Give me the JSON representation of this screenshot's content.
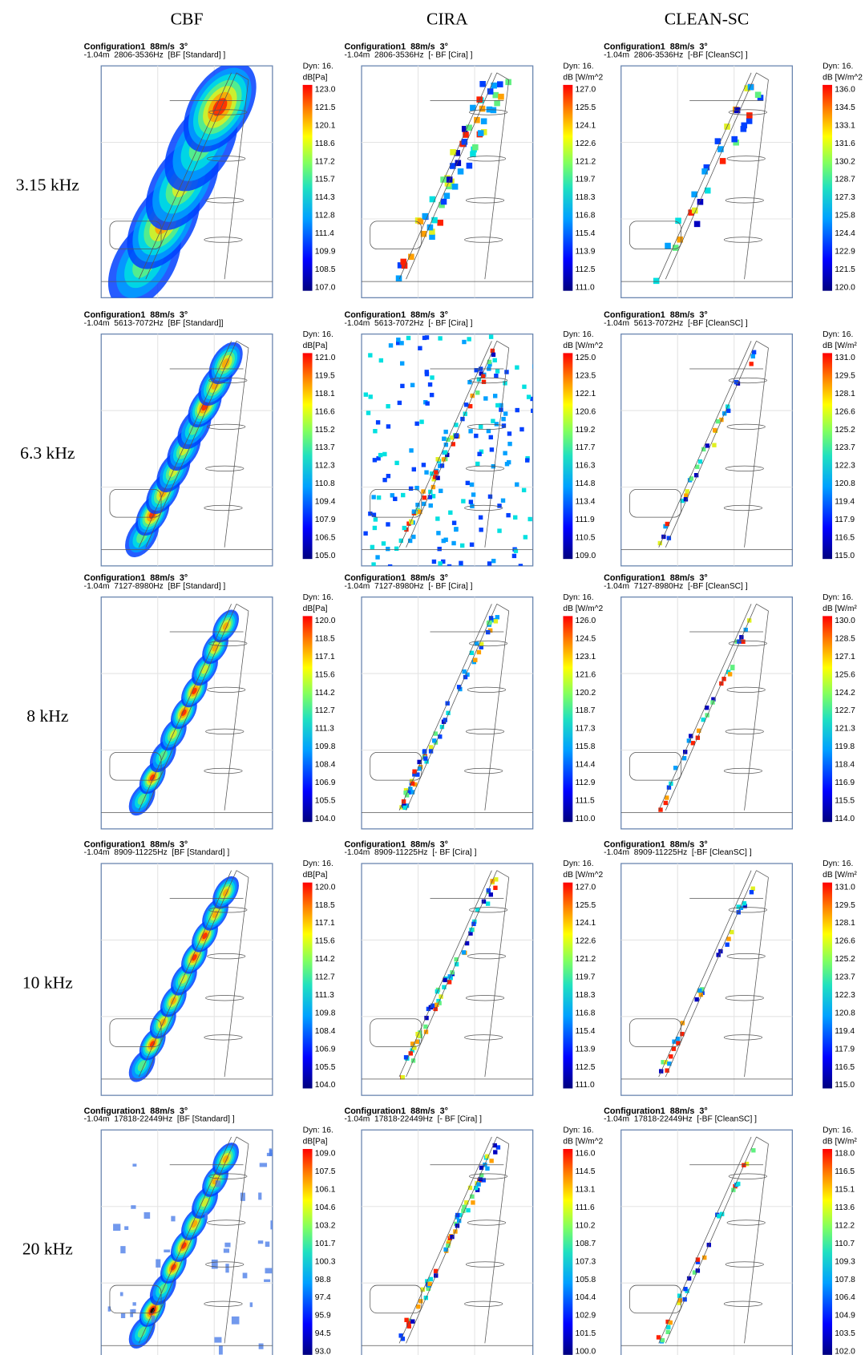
{
  "columns": [
    "CBF",
    "CIRA",
    "CLEAN-SC"
  ],
  "rows": [
    {
      "label": "3.15 kHz",
      "panels": [
        {
          "title": "Configuration1  88m/s  3°",
          "subtitle": "-1.04m  2806-3536Hz  [BF [Standard] ]",
          "dyn": "Dyn: 16.",
          "unit": "dB[Pa]",
          "scale": [
            "123.0",
            "121.5",
            "120.1",
            "118.6",
            "117.2",
            "115.7",
            "114.3",
            "112.8",
            "111.4",
            "109.9",
            "108.5",
            "107.0"
          ]
        },
        {
          "title": "Configuration1  88m/s  3°",
          "subtitle": "-1.04m  2806-3536Hz  [- BF [Cira] ]",
          "dyn": "Dyn: 16.",
          "unit": "dB [W/m^2",
          "scale": [
            "127.0",
            "125.5",
            "124.1",
            "122.6",
            "121.2",
            "119.7",
            "118.3",
            "116.8",
            "115.4",
            "113.9",
            "112.5",
            "111.0"
          ]
        },
        {
          "title": "Configuration1  88m/s  3°",
          "subtitle": "-1.04m  2806-3536Hz  [-BF [CleanSC] ]",
          "dyn": "Dyn: 16.",
          "unit": "dB [W/m^2",
          "scale": [
            "136.0",
            "134.5",
            "133.1",
            "131.6",
            "130.2",
            "128.7",
            "127.3",
            "125.8",
            "124.4",
            "122.9",
            "121.5",
            "120.0"
          ]
        }
      ]
    },
    {
      "label": "6.3 kHz",
      "panels": [
        {
          "title": "Configuration1  88m/s  3°",
          "subtitle": "-1.04m  5613-7072Hz  [BF [Standard]]",
          "dyn": "Dyn: 16.",
          "unit": "dB[Pa]",
          "scale": [
            "121.0",
            "119.5",
            "118.1",
            "116.6",
            "115.2",
            "113.7",
            "112.3",
            "110.8",
            "109.4",
            "107.9",
            "106.5",
            "105.0"
          ]
        },
        {
          "title": "Configuration1  88m/s  3°",
          "subtitle": "-1.04m  5613-7072Hz  [- BF [Cira] ]",
          "dyn": "Dyn: 16.",
          "unit": "dB [W/m^2",
          "scale": [
            "125.0",
            "123.5",
            "122.1",
            "120.6",
            "119.2",
            "117.7",
            "116.3",
            "114.8",
            "113.4",
            "111.9",
            "110.5",
            "109.0"
          ]
        },
        {
          "title": "Configuration1  88m/s  3°",
          "subtitle": "-1.04m  5613-7072Hz  [-BF [CleanSC] ]",
          "dyn": "Dyn: 16.",
          "unit": "dB [W/m²",
          "scale": [
            "131.0",
            "129.5",
            "128.1",
            "126.6",
            "125.2",
            "123.7",
            "122.3",
            "120.8",
            "119.4",
            "117.9",
            "116.5",
            "115.0"
          ]
        }
      ]
    },
    {
      "label": "8 kHz",
      "panels": [
        {
          "title": "Configuration1  88m/s  3°",
          "subtitle": "-1.04m  7127-8980Hz  [BF [Standard] ]",
          "dyn": "Dyn: 16.",
          "unit": "dB[Pa]",
          "scale": [
            "120.0",
            "118.5",
            "117.1",
            "115.6",
            "114.2",
            "112.7",
            "111.3",
            "109.8",
            "108.4",
            "106.9",
            "105.5",
            "104.0"
          ]
        },
        {
          "title": "Configuration1  88m/s  3°",
          "subtitle": "-1.04m  7127-8980Hz  [- BF [Cira] ]",
          "dyn": "Dyn: 16.",
          "unit": "dB [W/m^2",
          "scale": [
            "126.0",
            "124.5",
            "123.1",
            "121.6",
            "120.2",
            "118.7",
            "117.3",
            "115.8",
            "114.4",
            "112.9",
            "111.5",
            "110.0"
          ]
        },
        {
          "title": "Configuration1  88m/s  3°",
          "subtitle": "-1.04m  7127-8980Hz  [-BF [CleanSC] ]",
          "dyn": "Dyn: 16.",
          "unit": "dB [W/m²",
          "scale": [
            "130.0",
            "128.5",
            "127.1",
            "125.6",
            "124.2",
            "122.7",
            "121.3",
            "119.8",
            "118.4",
            "116.9",
            "115.5",
            "114.0"
          ]
        }
      ]
    },
    {
      "label": "10 kHz",
      "panels": [
        {
          "title": "Configuration1  88m/s  3°",
          "subtitle": "-1.04m  8909-11225Hz  [BF [Standard] ]",
          "dyn": "Dyn: 16.",
          "unit": "dB[Pa]",
          "scale": [
            "120.0",
            "118.5",
            "117.1",
            "115.6",
            "114.2",
            "112.7",
            "111.3",
            "109.8",
            "108.4",
            "106.9",
            "105.5",
            "104.0"
          ]
        },
        {
          "title": "Configuration1  88m/s  3°",
          "subtitle": "-1.04m  8909-11225Hz  [- BF [Cira] ]",
          "dyn": "Dyn: 16.",
          "unit": "dB [W/m^2",
          "scale": [
            "127.0",
            "125.5",
            "124.1",
            "122.6",
            "121.2",
            "119.7",
            "118.3",
            "116.8",
            "115.4",
            "113.9",
            "112.5",
            "111.0"
          ]
        },
        {
          "title": "Configuration1  88m/s  3°",
          "subtitle": "-1.04m  8909-11225Hz  [-BF [CleanSC] ]",
          "dyn": "Dyn: 16.",
          "unit": "dB [W/m²",
          "scale": [
            "131.0",
            "129.5",
            "128.1",
            "126.6",
            "125.2",
            "123.7",
            "122.3",
            "120.8",
            "119.4",
            "117.9",
            "116.5",
            "115.0"
          ]
        }
      ]
    },
    {
      "label": "20 kHz",
      "panels": [
        {
          "title": "Configuration1  88m/s  3°",
          "subtitle": "-1.04m  17818-22449Hz  [BF [Standard] ]",
          "dyn": "Dyn: 16.",
          "unit": "dB[Pa]",
          "scale": [
            "109.0",
            "107.5",
            "106.1",
            "104.6",
            "103.2",
            "101.7",
            "100.3",
            "98.8",
            "97.4",
            "95.9",
            "94.5",
            "93.0"
          ]
        },
        {
          "title": "Configuration1  88m/s  3°",
          "subtitle": "-1.04m  17818-22449Hz  [- BF [Cira] ]",
          "dyn": "Dyn: 16.",
          "unit": "dB [W/m^2",
          "scale": [
            "116.0",
            "114.5",
            "113.1",
            "111.6",
            "110.2",
            "108.7",
            "107.3",
            "105.8",
            "104.4",
            "102.9",
            "101.5",
            "100.0"
          ]
        },
        {
          "title": "Configuration1  88m/s  3°",
          "subtitle": "-1.04m  17818-22449Hz  [-BF [CleanSC] ]",
          "dyn": "Dyn: 16.",
          "unit": "dB [W/m²",
          "scale": [
            "118.0",
            "116.5",
            "115.1",
            "113.6",
            "112.2",
            "110.7",
            "109.3",
            "107.8",
            "106.4",
            "104.9",
            "103.5",
            "102.0"
          ]
        }
      ]
    }
  ]
}
